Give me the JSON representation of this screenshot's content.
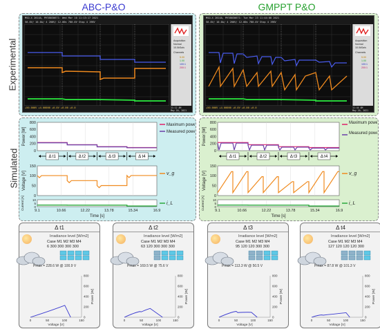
{
  "columns": {
    "left_title": "ABC-P&O",
    "right_title": "GMPPT P&O",
    "left_color": "#3a3ad0",
    "right_color": "#27a12f"
  },
  "rows": {
    "experimental": "Experimental",
    "simulated": "Simulated"
  },
  "scope_left": {
    "header": "MSO-X 2014A, MY58030671: Wed Mar 10 11:13:17 2021",
    "scale_bar": "50.0V/   10.0A/   4   200V/      12.00s   780.0V   Stop   4   198V",
    "menu": [
      "Acquisition",
      "Normal",
      "10.0kSa/s",
      "Channels"
    ],
    "ch_vals": [
      "5.00",
      "1.00",
      "100:1",
      "200:1"
    ],
    "bottom": "+50.000V   +4.00000   +0.0V   +8.00   +0.0",
    "timestamp": "11:12 AM\nMay 20, 2021"
  },
  "scope_right": {
    "header": "MSO-X 2014A, MY58030671: Tue Mar 23 11:44:08 2021",
    "scale_bar": "50.0V/   10.0A/   4   200V/      12.00s   780.0V   Stop   4   198V",
    "menu": [
      "Acquisition",
      "Normal",
      "10.0kSa/s",
      "Channels"
    ],
    "ch_vals": [
      "5.00",
      "1.00",
      "100:1",
      "200:1"
    ],
    "bottom": "+50.000V   +4.00000   +0.0V   +8.00   +0.0",
    "timestamp": "11:44 AM\nMay 20, 2021"
  },
  "chart_data": {
    "type": "line",
    "x_label": "Time [s]",
    "x_ticks": [
      "9.1",
      "10.66",
      "12.22",
      "13.78",
      "15.34",
      "16.9"
    ],
    "power_label": "Power [W]",
    "power_ticks": [
      "0",
      "200",
      "400",
      "600",
      "800"
    ],
    "voltage_label": "Voltage [V]",
    "voltage_ticks": [
      "0",
      "50",
      "100",
      "150"
    ],
    "current_label": "Current [A]",
    "current_ticks": [
      "0",
      "5",
      "10"
    ],
    "intervals": [
      "Δ t1",
      "Δ t2",
      "Δ t3",
      "Δ t4"
    ],
    "legend": {
      "max_power": "Maximum power",
      "measured_power": "Measured power",
      "vg": "v_g",
      "iL": "i_L"
    },
    "colors": {
      "max_power": "#e0206a",
      "measured_power": "#6a3fa8",
      "voltage": "#f08a1e",
      "current": "#28a83a"
    },
    "abc_power": [
      228.6,
      169.5,
      113.3,
      87.8
    ],
    "abc_voltage": [
      100.9,
      75.6,
      50.5,
      101.3
    ],
    "abc_current": [
      2.3,
      2.2,
      2.2,
      0.9
    ]
  },
  "cards": [
    {
      "title": "Δ t1",
      "irr": "Irradiance level [W/m2]",
      "hdr": "Case  M1   M2   M3   M4",
      "vals": "6     300   300   300   300",
      "pmax": "P̂max = 228.6 W @ 100.9 V",
      "mpp_v": 100.9,
      "mpp_p": 228.6
    },
    {
      "title": "Δ t2",
      "irr": "Irradiance level [W/m2]",
      "hdr": "Case  M1   M2   M3   M4",
      "vals": "63   120   300   300   300",
      "pmax": "P̂max = 169.5 W @ 75.6 V",
      "mpp_v": 75.6,
      "mpp_p": 169.5
    },
    {
      "title": "Δ t3",
      "irr": "Irradiance level [W/m2]",
      "hdr": "Case  M1   M2   M3   M4",
      "vals": "95   120   120   300   300",
      "pmax": "P̂max = 113.3 W @ 50.5 V",
      "mpp_v": 50.5,
      "mpp_p": 113.3
    },
    {
      "title": "Δ t4",
      "irr": "Irradiance level [W/m2]",
      "hdr": "Case  M1   M2   M3   M4",
      "vals": "127   120   120   120   300",
      "pmax": "P̂max = 87.8 W @ 101.3 V",
      "mpp_v": 101.3,
      "mpp_p": 87.8
    }
  ],
  "card_axes": {
    "xlabel": "Voltage [V]",
    "ylabel": "Power [W]",
    "x_ticks": [
      "0",
      "50",
      "100",
      "150"
    ],
    "y_ticks": [
      "0",
      "200",
      "400",
      "600",
      "800"
    ]
  }
}
